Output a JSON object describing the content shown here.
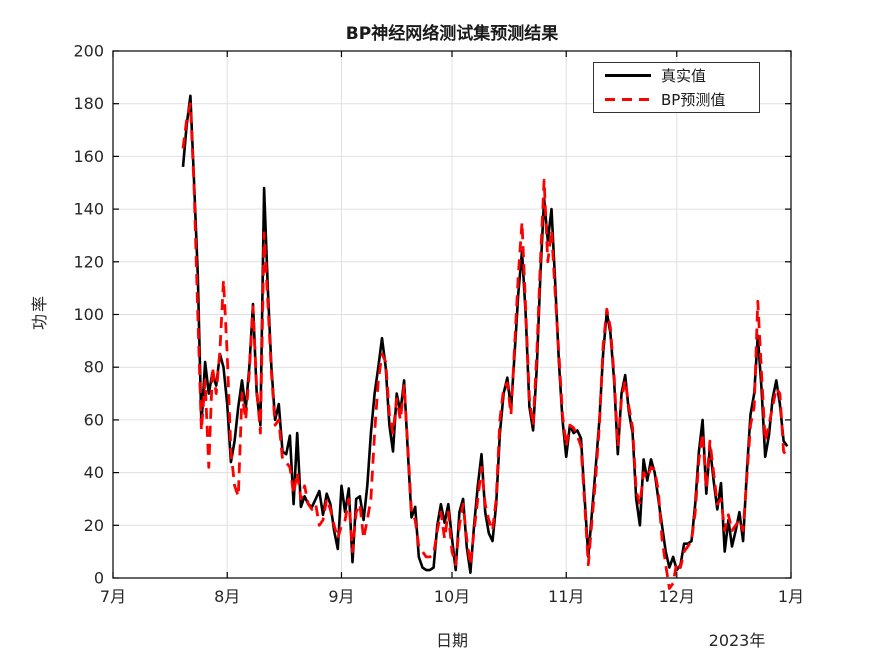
{
  "chart_data": {
    "type": "line",
    "title": "BP神经网络测试集预测结果",
    "xlabel": "日期",
    "ylabel": "功率",
    "year_label": "2023年",
    "grid": true,
    "ylim": [
      0,
      200
    ],
    "y_ticks": [
      0,
      20,
      40,
      60,
      80,
      100,
      120,
      140,
      160,
      180,
      200
    ],
    "x_tick_labels": [
      "7月",
      "8月",
      "9月",
      "10月",
      "11月",
      "12月",
      "1月"
    ],
    "x_tick_days": [
      0,
      31,
      62,
      92,
      123,
      153,
      184
    ],
    "x_axis_span_days": 184,
    "x_unit": "days since 2023-07-01",
    "series_start_day": 19,
    "colors": {
      "true": "#000000",
      "pred": "#ff0000",
      "grid": "#e0e0e0",
      "axis": "#000000",
      "tick_text": "#262626"
    },
    "legend": {
      "position": "top-right",
      "entries": [
        {
          "label": "真实值",
          "color": "#000000",
          "style": "solid"
        },
        {
          "label": "BP预测值",
          "color": "#ff0000",
          "style": "dashed"
        }
      ]
    },
    "series": [
      {
        "name": "真实值",
        "color": "#000000",
        "style": "solid",
        "values": [
          156,
          172,
          183,
          150,
          115,
          58,
          82,
          70,
          78,
          73,
          85,
          80,
          66,
          44,
          52,
          65,
          75,
          64,
          80,
          104,
          70,
          58,
          148,
          110,
          80,
          60,
          66,
          48,
          47,
          54,
          28,
          55,
          27,
          31,
          28,
          27,
          30,
          33,
          24,
          32,
          28,
          18,
          11,
          35,
          25,
          34,
          6,
          30,
          31,
          22,
          35,
          55,
          70,
          80,
          91,
          80,
          58,
          48,
          70,
          63,
          75,
          48,
          23,
          27,
          8,
          4,
          3,
          3,
          4,
          20,
          28,
          21,
          28,
          15,
          3,
          25,
          30,
          12,
          2,
          20,
          35,
          47,
          25,
          17,
          14,
          28,
          55,
          70,
          76,
          64,
          85,
          108,
          124,
          100,
          65,
          56,
          80,
          115,
          144,
          128,
          140,
          112,
          82,
          60,
          46,
          58,
          55,
          56,
          53,
          30,
          8,
          25,
          42,
          60,
          85,
          101,
          93,
          75,
          47,
          70,
          77,
          63,
          55,
          30,
          20,
          45,
          37,
          45,
          40,
          30,
          20,
          10,
          4,
          8,
          3,
          5,
          13,
          13,
          14,
          28,
          48,
          60,
          32,
          50,
          37,
          26,
          36,
          10,
          22,
          12,
          18,
          25,
          14,
          40,
          62,
          70,
          92,
          72,
          46,
          54,
          68,
          75,
          66,
          52,
          50
        ]
      },
      {
        "name": "BP预测值",
        "color": "#ff0000",
        "style": "dashed",
        "values": [
          163,
          174,
          180,
          148,
          100,
          56,
          75,
          42,
          80,
          70,
          86,
          113,
          85,
          48,
          35,
          31,
          70,
          60,
          78,
          103,
          72,
          55,
          131,
          105,
          78,
          58,
          60,
          45,
          44,
          42,
          32,
          40,
          30,
          35,
          28,
          26,
          28,
          20,
          22,
          30,
          26,
          20,
          15,
          20,
          22,
          30,
          10,
          25,
          28,
          15,
          22,
          30,
          55,
          75,
          85,
          82,
          62,
          55,
          68,
          60,
          73,
          50,
          25,
          22,
          12,
          10,
          8,
          8,
          9,
          18,
          25,
          15,
          25,
          10,
          5,
          20,
          28,
          15,
          5,
          18,
          30,
          42,
          28,
          22,
          18,
          30,
          60,
          72,
          74,
          62,
          88,
          115,
          135,
          102,
          68,
          58,
          85,
          120,
          151,
          120,
          132,
          108,
          85,
          62,
          50,
          58,
          57,
          54,
          50,
          28,
          5,
          22,
          38,
          58,
          88,
          102,
          95,
          77,
          50,
          68,
          75,
          65,
          57,
          33,
          28,
          40,
          38,
          42,
          41,
          33,
          15,
          5,
          -4,
          -2,
          6,
          4,
          10,
          12,
          14,
          25,
          45,
          55,
          34,
          52,
          40,
          28,
          30,
          18,
          24,
          18,
          20,
          22,
          18,
          38,
          58,
          65,
          105,
          78,
          52,
          58,
          65,
          72,
          70,
          48,
          46
        ]
      }
    ]
  }
}
